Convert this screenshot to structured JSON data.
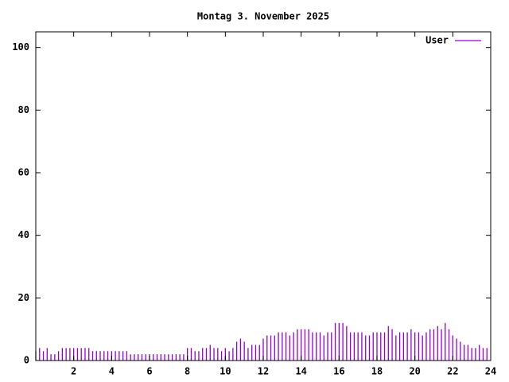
{
  "chart_data": {
    "type": "impulse",
    "title": "Montag 3. November 2025",
    "x": [
      0,
      0.2,
      0.4,
      0.6,
      0.8,
      1,
      1.2,
      1.4,
      1.6,
      1.8,
      2,
      2.2,
      2.4,
      2.6,
      2.8,
      3,
      3.2,
      3.4,
      3.6,
      3.8,
      4,
      4.2,
      4.4,
      4.6,
      4.8,
      5,
      5.2,
      5.4,
      5.6,
      5.8,
      6,
      6.2,
      6.4,
      6.6,
      6.8,
      7,
      7.2,
      7.4,
      7.6,
      7.8,
      8,
      8.2,
      8.4,
      8.6,
      8.8,
      9,
      9.2,
      9.4,
      9.6,
      9.8,
      10,
      10.2,
      10.4,
      10.6,
      10.8,
      11,
      11.2,
      11.4,
      11.6,
      11.8,
      12,
      12.2,
      12.4,
      12.6,
      12.8,
      13,
      13.2,
      13.4,
      13.6,
      13.8,
      14,
      14.2,
      14.4,
      14.6,
      14.8,
      15,
      15.2,
      15.4,
      15.6,
      15.8,
      16,
      16.2,
      16.4,
      16.6,
      16.8,
      17,
      17.2,
      17.4,
      17.6,
      17.8,
      18,
      18.2,
      18.4,
      18.6,
      18.8,
      19,
      19.2,
      19.4,
      19.6,
      19.8,
      20,
      20.2,
      20.4,
      20.6,
      20.8,
      21,
      21.2,
      21.4,
      21.6,
      21.8,
      22,
      22.2,
      22.4,
      22.6,
      22.8,
      23,
      23.2,
      23.4,
      23.6,
      23.8
    ],
    "series": [
      {
        "name": "User",
        "color": "#9400d3",
        "values": [
          3,
          4,
          3,
          4,
          2,
          2,
          3,
          4,
          4,
          4,
          4,
          4,
          4,
          4,
          4,
          3,
          3,
          3,
          3,
          3,
          3,
          3,
          3,
          3,
          3,
          2,
          2,
          2,
          2,
          2,
          2,
          2,
          2,
          2,
          2,
          2,
          2,
          2,
          2,
          2,
          4,
          4,
          3,
          3,
          4,
          4,
          5,
          4,
          4,
          3,
          4,
          3,
          4,
          6,
          7,
          6,
          4,
          5,
          5,
          5,
          7,
          8,
          8,
          8,
          9,
          9,
          9,
          8,
          9,
          10,
          10,
          10,
          10,
          9,
          9,
          9,
          8,
          9,
          9,
          12,
          12,
          12,
          11,
          9,
          9,
          9,
          9,
          8,
          8,
          9,
          9,
          9,
          9,
          11,
          10,
          8,
          9,
          9,
          9,
          10,
          9,
          9,
          8,
          9,
          10,
          10,
          11,
          10,
          12,
          10,
          8,
          7,
          6,
          5,
          5,
          4,
          4,
          5,
          4,
          4
        ]
      }
    ],
    "xlim": [
      0,
      24
    ],
    "xticks": [
      2,
      4,
      6,
      8,
      10,
      12,
      14,
      16,
      18,
      20,
      22,
      24
    ],
    "ylim": [
      0,
      105
    ],
    "yticks": [
      0,
      20,
      40,
      60,
      80,
      100
    ],
    "legend": "top-right"
  }
}
